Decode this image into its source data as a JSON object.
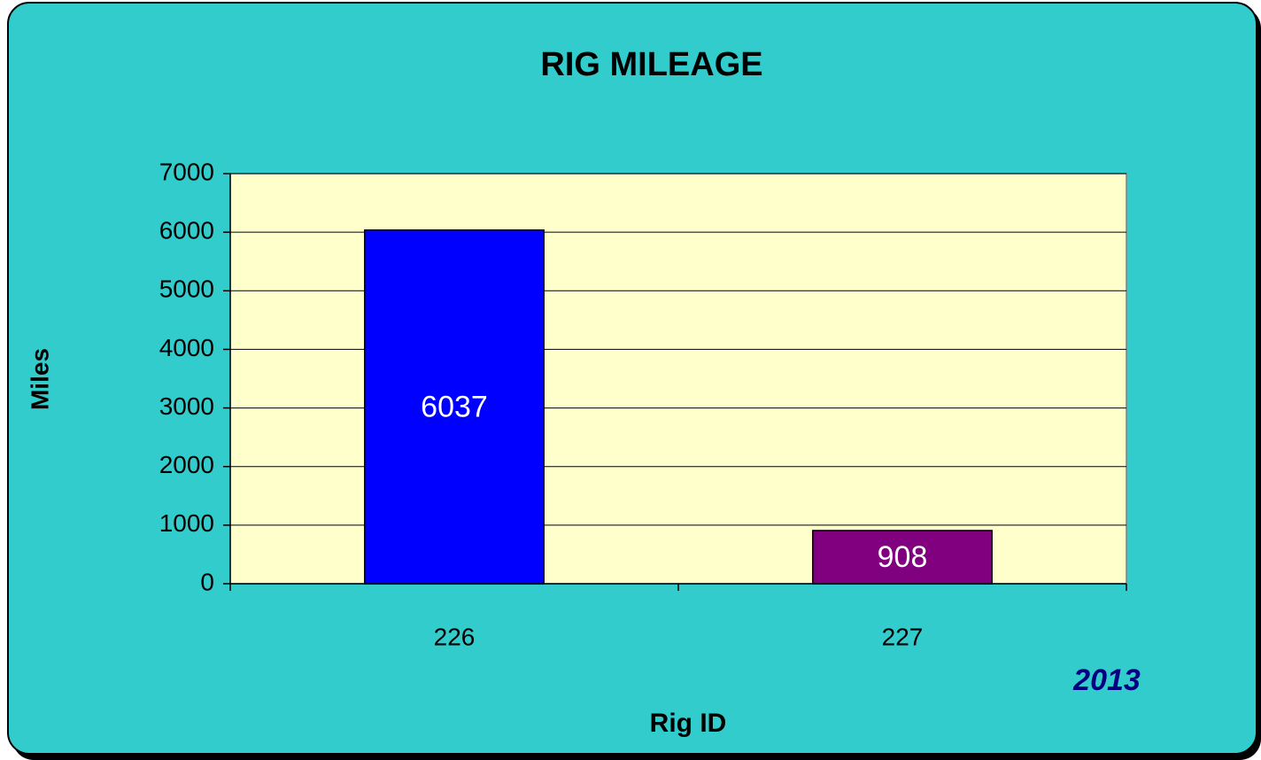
{
  "chart_data": {
    "type": "bar",
    "title": "RIG MILEAGE",
    "x_label": "Rig ID",
    "y_label": "Miles",
    "annotation": "2013",
    "categories": [
      "226",
      "227"
    ],
    "values": [
      6037,
      908
    ],
    "colors": [
      "#0000FF",
      "#800080"
    ],
    "ylim": [
      0,
      7000
    ],
    "yticks": [
      0,
      1000,
      2000,
      3000,
      4000,
      5000,
      6000,
      7000
    ],
    "grid": true
  }
}
